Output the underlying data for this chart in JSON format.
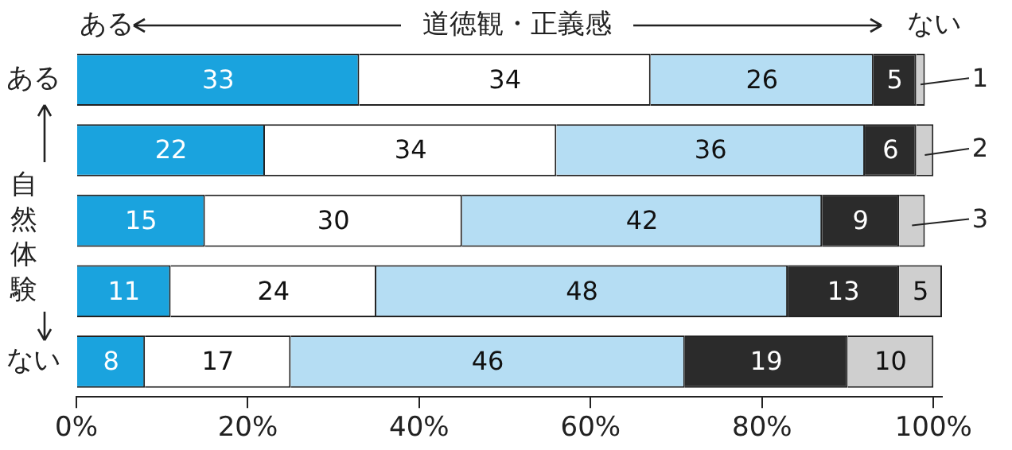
{
  "chart_data": {
    "type": "bar",
    "orientation": "horizontal",
    "stacked": true,
    "xlabel": "道徳観・正義感",
    "ylabel": "自然体験",
    "annotations": [
      "ある",
      "ない"
    ],
    "categories": [
      "ある",
      null,
      null,
      null,
      "ない"
    ],
    "series": [
      {
        "color": "#1aa3de",
        "values": [
          33,
          22,
          15,
          11,
          8
        ]
      },
      {
        "color": "#ffffff",
        "values": [
          34,
          34,
          30,
          24,
          17
        ]
      },
      {
        "color": "#b5ddf3",
        "values": [
          26,
          36,
          42,
          48,
          46
        ]
      },
      {
        "color": "#2b2b2b",
        "values": [
          5,
          6,
          9,
          13,
          19
        ]
      },
      {
        "color": "#cfcfcf",
        "values": [
          1,
          2,
          3,
          5,
          10
        ]
      }
    ],
    "xlim": [
      0,
      101
    ],
    "xticks": [
      {
        "value": 0,
        "label": "0%"
      },
      {
        "value": 20,
        "label": "20%"
      },
      {
        "value": 40,
        "label": "40%"
      },
      {
        "value": 60,
        "label": "60%"
      },
      {
        "value": 80,
        "label": "80%"
      },
      {
        "value": 100,
        "label": "100%"
      }
    ],
    "grid": false,
    "legend": false,
    "data_labels": true
  }
}
